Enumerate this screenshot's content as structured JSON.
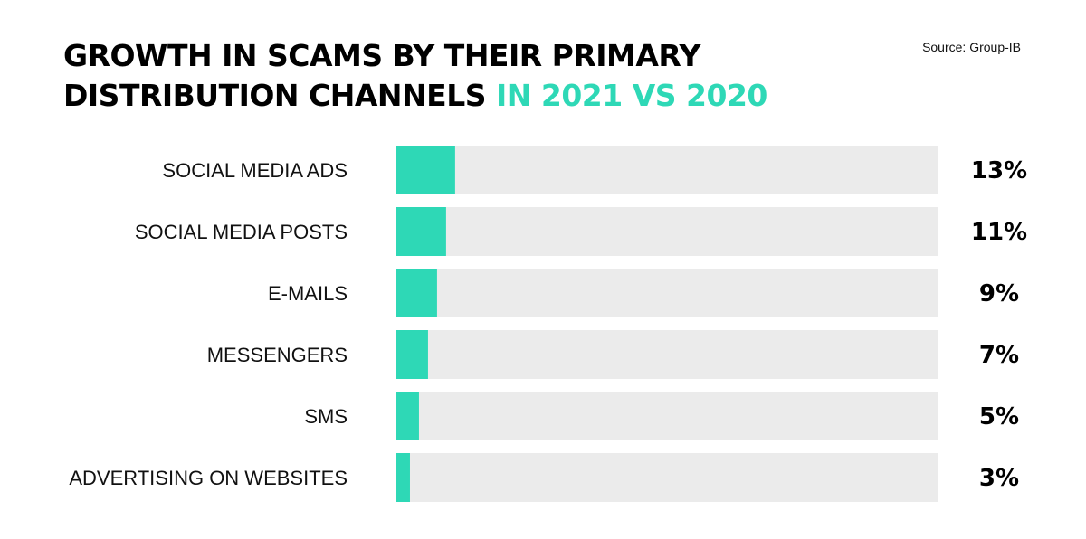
{
  "header": {
    "title_line1": "GROWTH IN SCAMS BY THEIR PRIMARY",
    "title_line2": "DISTRIBUTION CHANNELS",
    "title_accent": "IN 2021 VS 2020",
    "source": "Source: Group-IB"
  },
  "colors": {
    "accent": "#2ed8b6",
    "track": "#ebebeb",
    "text": "#000000"
  },
  "chart_data": {
    "type": "bar",
    "orientation": "horizontal",
    "title": "GROWTH IN SCAMS BY THEIR PRIMARY DISTRIBUTION CHANNELS IN 2021 VS 2020",
    "categories": [
      "SOCIAL MEDIA ADS",
      "SOCIAL MEDIA POSTS",
      "E-MAILS",
      "MESSENGERS",
      "SMS",
      "ADVERTISING ON WEBSITES"
    ],
    "values": [
      13,
      11,
      9,
      7,
      5,
      3
    ],
    "value_labels": [
      "13%",
      "11%",
      "9%",
      "7%",
      "5%",
      "3%"
    ],
    "xlim": [
      0,
      120
    ],
    "xlabel": "",
    "ylabel": "",
    "grid": false,
    "legend": "none"
  }
}
